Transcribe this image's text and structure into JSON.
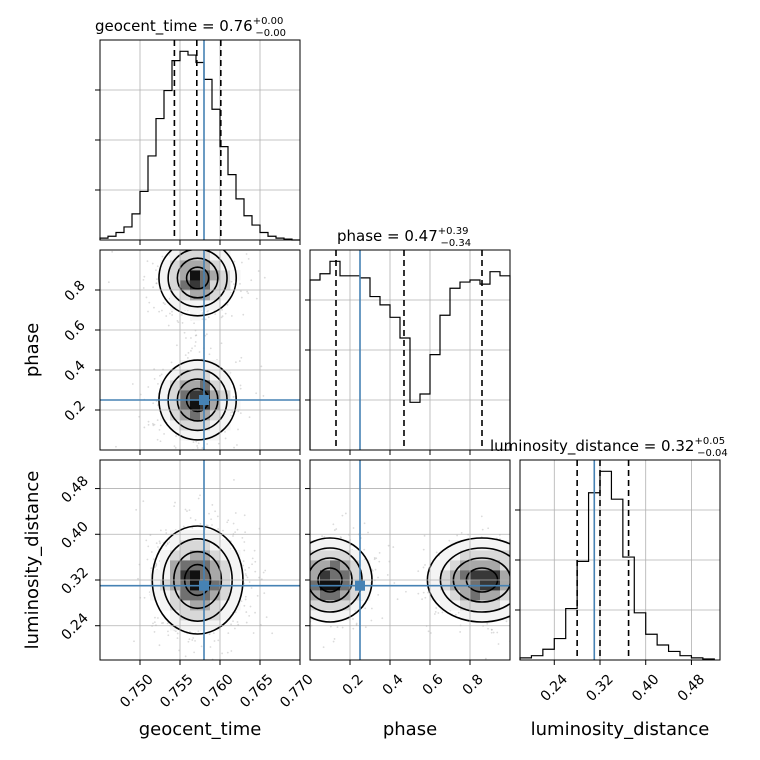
{
  "colors": {
    "truth": "#4682b4",
    "grid": "#b0b0b0",
    "density": [
      "#f4f4f4",
      "#d8d8d8",
      "#a8a8a8",
      "#707070",
      "#383838",
      "#111111"
    ],
    "sample": "#999999"
  },
  "chart_data": {
    "type": "corner",
    "parameters": [
      "geocent_time",
      "phase",
      "luminosity_distance"
    ],
    "truths": {
      "geocent_time": 0.758,
      "phase": 0.25,
      "luminosity_distance": 0.31
    },
    "titles": [
      {
        "param": "geocent_time",
        "text": "geocent_time = 0.76",
        "sup": "+0.00",
        "sub": "−0.00"
      },
      {
        "param": "phase",
        "text": "phase = 0.47",
        "sup": "+0.39",
        "sub": "−0.34"
      },
      {
        "param": "luminosity_distance",
        "text": "luminosity_distance = 0.32",
        "sup": "+0.05",
        "sub": "−0.04"
      }
    ],
    "axes": {
      "geocent_time": {
        "range": [
          0.745,
          0.77
        ],
        "ticks": [
          0.75,
          0.755,
          0.76,
          0.765,
          0.77
        ],
        "tick_labels": [
          "0.750",
          "0.755",
          "0.760",
          "0.765",
          "0.770"
        ],
        "label": "geocent_time"
      },
      "phase": {
        "range": [
          0.0,
          1.0
        ],
        "ticks": [
          0.2,
          0.4,
          0.6,
          0.8
        ],
        "tick_labels": [
          "0.2",
          "0.4",
          "0.6",
          "0.8"
        ],
        "label": "phase"
      },
      "luminosity_distance": {
        "range": [
          0.18,
          0.53
        ],
        "ticks": [
          0.24,
          0.32,
          0.4,
          0.48
        ],
        "tick_labels": [
          "0.24",
          "0.32",
          "0.40",
          "0.48"
        ],
        "label": "luminosity_distance"
      }
    },
    "histograms": {
      "geocent_time": {
        "edges": [
          0.745,
          0.746,
          0.747,
          0.748,
          0.749,
          0.75,
          0.751,
          0.752,
          0.753,
          0.754,
          0.755,
          0.756,
          0.757,
          0.758,
          0.759,
          0.76,
          0.761,
          0.762,
          0.763,
          0.764,
          0.765,
          0.766,
          0.767,
          0.768,
          0.769,
          0.77
        ],
        "counts": [
          1,
          2,
          4,
          7,
          14,
          26,
          45,
          65,
          80,
          96,
          101,
          99,
          95,
          86,
          70,
          50,
          35,
          22,
          13,
          8,
          4,
          2,
          1,
          0.5,
          0
        ],
        "quantiles": [
          0.7543,
          0.7571,
          0.7601
        ]
      },
      "phase": {
        "edges": [
          0.0,
          0.05,
          0.1,
          0.15,
          0.2,
          0.25,
          0.3,
          0.35,
          0.4,
          0.45,
          0.5,
          0.55,
          0.6,
          0.65,
          0.7,
          0.75,
          0.8,
          0.85,
          0.9,
          0.95,
          1.0
        ],
        "counts": [
          82,
          85,
          91,
          84,
          84,
          83,
          74,
          70,
          64,
          54,
          23,
          27,
          46,
          65,
          78,
          81,
          82,
          80,
          86,
          84
        ],
        "quantiles": [
          0.13,
          0.47,
          0.86
        ]
      },
      "luminosity_distance": {
        "edges": [
          0.18,
          0.2,
          0.22,
          0.24,
          0.26,
          0.28,
          0.3,
          0.32,
          0.34,
          0.36,
          0.38,
          0.4,
          0.42,
          0.44,
          0.46,
          0.48,
          0.5,
          0.52
        ],
        "counts": [
          1,
          2,
          5,
          10,
          24,
          46,
          78,
          88,
          75,
          48,
          22,
          12,
          7,
          4,
          2,
          1,
          0.5
        ],
        "quantiles": [
          0.28,
          0.32,
          0.37
        ]
      }
    },
    "density_2d": [
      {
        "x": "geocent_time",
        "y": "phase",
        "blobs": [
          {
            "cx": 0.7572,
            "cy": 0.25,
            "sx": 0.0023,
            "sy": 0.095,
            "w": 1.0
          },
          {
            "cx": 0.7572,
            "cy": 0.86,
            "sx": 0.0023,
            "sy": 0.09,
            "w": 0.95
          }
        ]
      },
      {
        "x": "geocent_time",
        "y": "luminosity_distance",
        "blobs": [
          {
            "cx": 0.7572,
            "cy": 0.32,
            "sx": 0.0027,
            "sy": 0.045,
            "w": 1.0
          }
        ]
      },
      {
        "x": "phase",
        "y": "luminosity_distance",
        "blobs": [
          {
            "cx": 0.1,
            "cy": 0.32,
            "sx": 0.1,
            "sy": 0.035,
            "w": 1.0
          },
          {
            "cx": 0.86,
            "cy": 0.32,
            "sx": 0.13,
            "sy": 0.035,
            "w": 0.95
          }
        ]
      }
    ]
  }
}
